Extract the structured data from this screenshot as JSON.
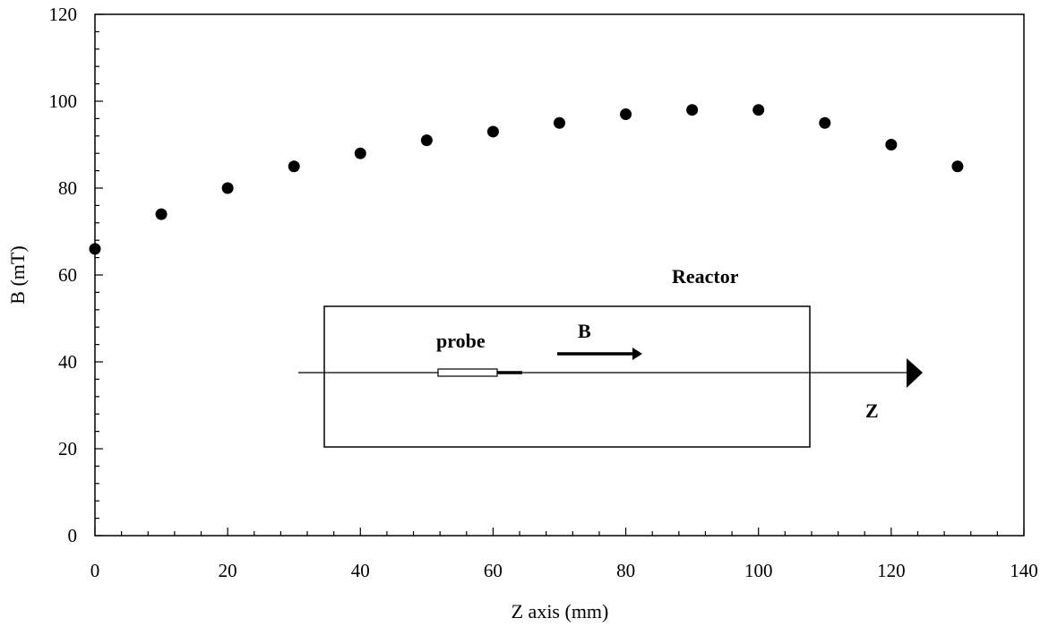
{
  "chart_data": {
    "type": "scatter",
    "title": "",
    "xlabel": "Z axis (mm)",
    "ylabel": "B (mT)",
    "xlim": [
      0,
      140
    ],
    "ylim": [
      0,
      120
    ],
    "x_ticks": [
      0,
      20,
      40,
      60,
      80,
      100,
      120,
      140
    ],
    "y_ticks": [
      0,
      20,
      40,
      60,
      80,
      100,
      120
    ],
    "grid": false,
    "legend": "none",
    "marker_color": "#000000",
    "x": [
      0,
      10,
      20,
      30,
      40,
      50,
      60,
      70,
      80,
      90,
      100,
      110,
      120,
      130
    ],
    "y": [
      66,
      74,
      80,
      85,
      88,
      91,
      93,
      95,
      97,
      98,
      98,
      95,
      90,
      85
    ],
    "annotations": {
      "reactor": "Reactor",
      "probe": "probe",
      "field": "B",
      "axis": "Z"
    }
  }
}
